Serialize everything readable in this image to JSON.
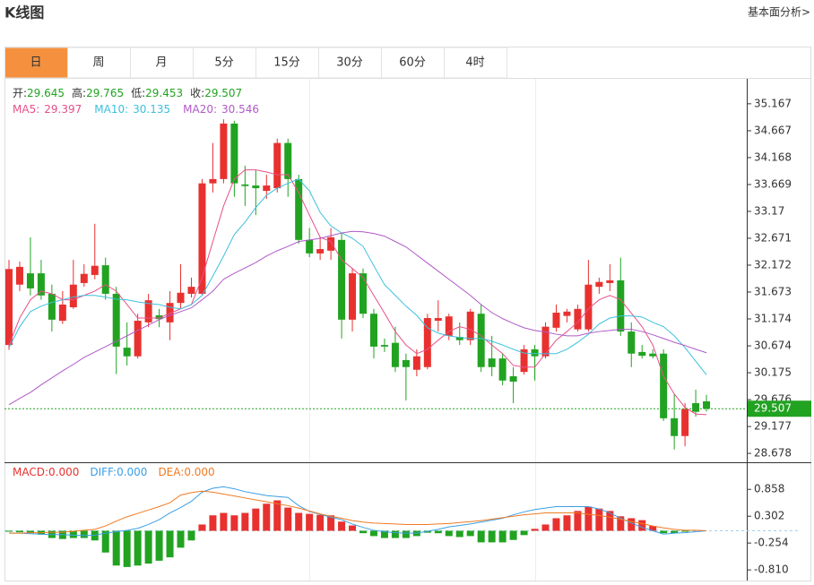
{
  "header": {
    "title": "K线图",
    "link": "基本面分析>"
  },
  "tabs": [
    "日",
    "周",
    "月",
    "5分",
    "15分",
    "30分",
    "60分",
    "4时"
  ],
  "active_tab": 0,
  "chart_data": [
    {
      "type": "candlestick",
      "quote": [
        {
          "label": "开:",
          "value": 29.645
        },
        {
          "label": "高:",
          "value": 29.765
        },
        {
          "label": "低:",
          "value": 29.453
        },
        {
          "label": "收:",
          "value": 29.507
        }
      ],
      "up_color": "#e8312f",
      "down_color": "#21a321",
      "open": [
        30.69,
        31.81,
        32.02,
        32.02,
        31.64,
        31.14,
        31.39,
        31.84,
        31.99,
        32.17,
        31.64,
        30.64,
        30.48,
        31.11,
        31.24,
        31.11,
        31.47,
        31.64,
        31.64,
        33.69,
        33.77,
        34.8,
        33.67,
        33.65,
        33.55,
        33.6,
        34.44,
        33.77,
        32.64,
        32.39,
        32.44,
        32.64,
        31.16,
        32.02,
        31.27,
        30.69,
        30.73,
        30.41,
        30.23,
        30.28,
        31.14,
        30.86,
        30.84,
        30.78,
        31.27,
        30.44,
        30.44,
        30.11,
        30.19,
        30.61,
        30.48,
        31.01,
        31.23,
        30.98,
        30.98,
        31.77,
        31.84,
        31.89,
        30.94,
        30.56,
        30.53,
        30.53,
        29.33,
        29.0,
        29.61,
        29.645
      ],
      "high": [
        32.27,
        32.24,
        32.69,
        32.27,
        31.81,
        31.69,
        32.27,
        32.19,
        32.94,
        32.31,
        31.77,
        31.11,
        31.27,
        31.64,
        31.36,
        31.69,
        32.19,
        31.94,
        33.77,
        34.44,
        34.88,
        34.85,
        34.02,
        33.94,
        33.85,
        34.52,
        34.52,
        33.85,
        32.86,
        32.69,
        32.86,
        32.77,
        32.11,
        32.11,
        31.36,
        30.81,
        31.03,
        30.53,
        30.61,
        31.27,
        31.52,
        31.27,
        31.11,
        31.36,
        31.44,
        30.86,
        30.53,
        30.28,
        30.69,
        30.69,
        31.11,
        31.44,
        31.36,
        31.44,
        32.27,
        31.94,
        32.19,
        32.31,
        31.11,
        30.69,
        30.61,
        30.61,
        29.78,
        29.61,
        29.86,
        29.765
      ],
      "low": [
        30.6,
        31.69,
        31.61,
        31.53,
        30.94,
        31.08,
        31.36,
        31.77,
        31.91,
        31.53,
        30.15,
        30.31,
        30.44,
        31.02,
        31.02,
        30.78,
        31.36,
        31.57,
        31.61,
        33.52,
        33.69,
        33.44,
        33.27,
        33.1,
        33.4,
        33.52,
        33.44,
        32.57,
        32.32,
        32.27,
        32.27,
        30.81,
        30.94,
        31.19,
        30.44,
        30.56,
        30.19,
        29.66,
        30.11,
        30.24,
        30.94,
        30.78,
        30.69,
        30.69,
        30.19,
        30.11,
        29.94,
        29.61,
        30.14,
        30.03,
        30.44,
        30.94,
        31.11,
        30.94,
        30.94,
        31.64,
        31.69,
        30.86,
        30.28,
        30.44,
        30.44,
        29.28,
        28.75,
        28.81,
        29.36,
        29.453
      ],
      "close": [
        32.1,
        32.14,
        31.74,
        31.61,
        31.16,
        31.44,
        31.81,
        32.01,
        32.16,
        31.64,
        30.66,
        30.48,
        31.14,
        31.52,
        31.17,
        31.47,
        31.66,
        31.77,
        33.69,
        33.77,
        34.8,
        33.69,
        33.64,
        33.6,
        33.65,
        34.44,
        33.77,
        32.64,
        32.39,
        32.47,
        32.69,
        31.16,
        32.02,
        31.27,
        30.66,
        30.66,
        30.28,
        30.28,
        30.48,
        31.19,
        31.19,
        31.22,
        30.78,
        31.31,
        30.28,
        30.28,
        30.03,
        30.01,
        30.61,
        30.48,
        31.03,
        31.29,
        31.31,
        31.36,
        31.81,
        31.86,
        31.89,
        30.94,
        30.53,
        30.49,
        30.48,
        29.33,
        29.0,
        29.5,
        29.45,
        29.507
      ],
      "series": [
        {
          "name": "MA5:",
          "color": "#e8508a",
          "current": 29.397,
          "values": [
            30.69,
            31.19,
            31.53,
            31.69,
            31.64,
            31.53,
            31.53,
            31.61,
            31.69,
            31.81,
            31.69,
            31.44,
            31.19,
            31.19,
            31.19,
            31.28,
            31.36,
            31.44,
            31.94,
            32.61,
            33.27,
            33.77,
            33.94,
            33.94,
            33.9,
            33.85,
            33.85,
            33.52,
            33.1,
            32.69,
            32.61,
            32.27,
            32.11,
            31.94,
            31.61,
            31.28,
            30.94,
            30.69,
            30.53,
            30.61,
            30.78,
            30.94,
            31.03,
            30.98,
            30.86,
            30.69,
            30.53,
            30.31,
            30.28,
            30.28,
            30.53,
            30.78,
            30.94,
            31.11,
            31.36,
            31.53,
            31.61,
            31.53,
            31.28,
            31.03,
            30.69,
            30.11,
            29.78,
            29.53,
            29.41,
            29.397
          ]
        },
        {
          "name": "MA10:",
          "color": "#3cc0de",
          "current": 30.135,
          "values": [
            30.64,
            31.03,
            31.31,
            31.41,
            31.48,
            31.53,
            31.58,
            31.61,
            31.61,
            31.58,
            31.54,
            31.53,
            31.49,
            31.46,
            31.44,
            31.39,
            31.36,
            31.44,
            31.61,
            31.97,
            32.34,
            32.74,
            32.97,
            33.24,
            33.47,
            33.6,
            33.69,
            33.77,
            33.55,
            33.15,
            32.9,
            32.77,
            32.67,
            32.52,
            32.16,
            31.81,
            31.61,
            31.41,
            31.24,
            31.01,
            30.91,
            30.86,
            30.83,
            30.81,
            30.81,
            30.76,
            30.69,
            30.61,
            30.54,
            30.53,
            30.53,
            30.53,
            30.61,
            30.74,
            30.89,
            31.08,
            31.19,
            31.23,
            31.23,
            31.21,
            31.11,
            31.03,
            30.86,
            30.64,
            30.39,
            30.135
          ]
        },
        {
          "name": "MA20:",
          "color": "#b05ac8",
          "current": 30.546,
          "values": [
            29.58,
            29.7,
            29.81,
            29.95,
            30.08,
            30.21,
            30.33,
            30.46,
            30.56,
            30.66,
            30.76,
            30.86,
            30.96,
            31.06,
            31.16,
            31.24,
            31.31,
            31.38,
            31.53,
            31.69,
            31.91,
            32.02,
            32.12,
            32.22,
            32.34,
            32.44,
            32.52,
            32.61,
            32.64,
            32.67,
            32.72,
            32.77,
            32.8,
            32.79,
            32.76,
            32.71,
            32.61,
            32.51,
            32.36,
            32.21,
            32.06,
            31.91,
            31.76,
            31.61,
            31.44,
            31.29,
            31.18,
            31.09,
            31.01,
            30.96,
            30.93,
            30.89,
            30.86,
            30.86,
            30.91,
            30.94,
            30.96,
            30.98,
            30.98,
            30.94,
            30.88,
            30.81,
            30.74,
            30.68,
            30.61,
            30.546
          ]
        }
      ],
      "last_price": 29.507,
      "ylim": [
        28.53,
        35.63
      ],
      "yticks": [
        35.167,
        34.667,
        34.168,
        33.669,
        33.17,
        32.671,
        32.172,
        31.673,
        31.174,
        30.674,
        30.175,
        29.676,
        29.177,
        28.678
      ]
    },
    {
      "type": "macd",
      "histogram": {
        "name": "MACD:",
        "current": {
          "value": 0,
          "label": "0.000"
        },
        "color": "#e8312f",
        "up_color": "#e8312f",
        "down_color": "#21a321",
        "values": [
          -0.02,
          -0.03,
          -0.05,
          -0.08,
          -0.15,
          -0.17,
          -0.15,
          -0.15,
          -0.2,
          -0.45,
          -0.72,
          -0.75,
          -0.72,
          -0.68,
          -0.62,
          -0.55,
          -0.35,
          -0.2,
          0.13,
          0.32,
          0.37,
          0.32,
          0.37,
          0.46,
          0.56,
          0.63,
          0.48,
          0.37,
          0.35,
          0.33,
          0.32,
          0.19,
          0.11,
          -0.05,
          -0.11,
          -0.15,
          -0.15,
          -0.15,
          -0.11,
          -0.04,
          -0.05,
          -0.11,
          -0.13,
          -0.11,
          -0.24,
          -0.24,
          -0.24,
          -0.19,
          -0.09,
          0.04,
          0.13,
          0.26,
          0.32,
          0.41,
          0.5,
          0.46,
          0.41,
          0.3,
          0.26,
          0.22,
          0.1,
          -0.05,
          -0.05,
          -0.02,
          0.01,
          0
        ]
      },
      "series": [
        {
          "name": "DIFF:",
          "color": "#3a9fe6",
          "current": {
            "value": 0,
            "label": "0.000"
          },
          "values": [
            -0.05,
            -0.05,
            -0.06,
            -0.07,
            -0.08,
            -0.08,
            -0.09,
            -0.1,
            -0.09,
            -0.05,
            -0.02,
            0.01,
            0.05,
            0.13,
            0.23,
            0.37,
            0.48,
            0.61,
            0.8,
            0.88,
            0.91,
            0.87,
            0.81,
            0.77,
            0.73,
            0.71,
            0.69,
            0.52,
            0.4,
            0.34,
            0.28,
            0.23,
            0.14,
            0.07,
            0.01,
            -0.02,
            -0.04,
            -0.05,
            -0.05,
            -0.01,
            0.03,
            0.08,
            0.11,
            0.14,
            0.18,
            0.22,
            0.26,
            0.33,
            0.39,
            0.44,
            0.47,
            0.5,
            0.5,
            0.5,
            0.5,
            0.45,
            0.37,
            0.26,
            0.16,
            0.07,
            0,
            -0.07,
            -0.05,
            -0.04,
            -0.02,
            0
          ]
        },
        {
          "name": "DEA:",
          "color": "#f07a22",
          "current": {
            "value": 0,
            "label": "0.000"
          },
          "values": [
            -0.05,
            -0.05,
            -0.04,
            -0.04,
            -0.03,
            -0.03,
            -0.01,
            0.01,
            0.03,
            0.1,
            0.2,
            0.29,
            0.36,
            0.43,
            0.5,
            0.58,
            0.74,
            0.79,
            0.82,
            0.8,
            0.76,
            0.72,
            0.68,
            0.64,
            0.6,
            0.56,
            0.52,
            0.47,
            0.41,
            0.35,
            0.3,
            0.26,
            0.21,
            0.18,
            0.16,
            0.15,
            0.14,
            0.13,
            0.13,
            0.13,
            0.14,
            0.15,
            0.17,
            0.19,
            0.21,
            0.24,
            0.27,
            0.3,
            0.33,
            0.35,
            0.37,
            0.37,
            0.37,
            0.37,
            0.34,
            0.32,
            0.28,
            0.24,
            0.19,
            0.15,
            0.1,
            0.06,
            0.03,
            0.01,
            0.01,
            0
          ]
        }
      ],
      "ylim": [
        -1.03,
        1.4
      ],
      "yticks": [
        0.858,
        0.302,
        -0.254,
        {
          "value": -0.81,
          "label": "-0.810"
        }
      ]
    }
  ]
}
